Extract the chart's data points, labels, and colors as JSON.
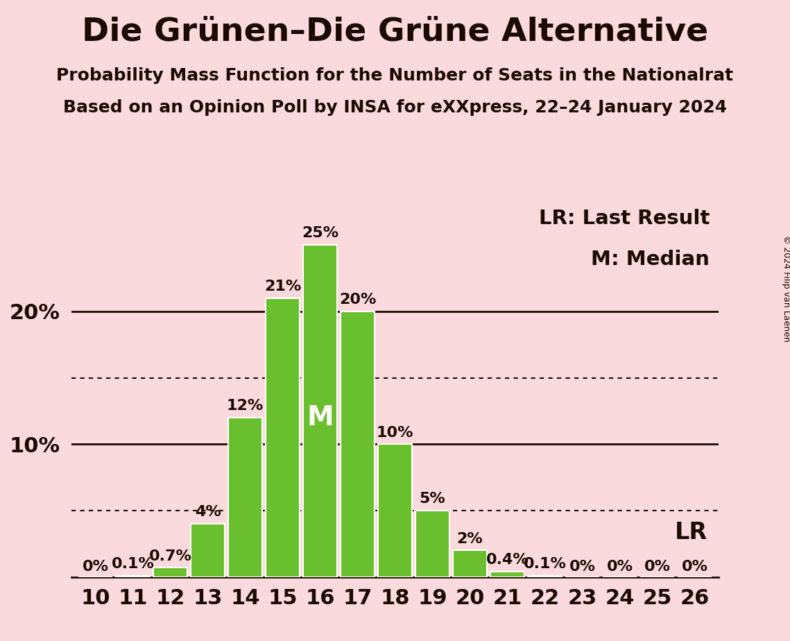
{
  "title": "Die Grünen–Die Grüne Alternative",
  "subtitle1": "Probability Mass Function for the Number of Seats in the Nationalrat",
  "subtitle2": "Based on an Opinion Poll by INSA for eXXpress, 22–24 January 2024",
  "copyright": "© 2024 Filip van Laenen",
  "legend_lr": "LR: Last Result",
  "legend_m": "M: Median",
  "background_color": "#fadadd",
  "bar_color": "#6abf2e",
  "bar_edge_color": "#ffffff",
  "text_color": "#1a0a00",
  "seats": [
    10,
    11,
    12,
    13,
    14,
    15,
    16,
    17,
    18,
    19,
    20,
    21,
    22,
    23,
    24,
    25,
    26
  ],
  "probabilities": [
    0.0,
    0.1,
    0.7,
    4.0,
    12.0,
    21.0,
    25.0,
    20.0,
    10.0,
    5.0,
    2.0,
    0.4,
    0.1,
    0.0,
    0.0,
    0.0,
    0.0
  ],
  "prob_labels": [
    "0%",
    "0.1%",
    "0.7%",
    "4%",
    "12%",
    "21%",
    "25%",
    "20%",
    "10%",
    "5%",
    "2%",
    "0.4%",
    "0.1%",
    "0%",
    "0%",
    "0%",
    "0%"
  ],
  "median_seat": 16,
  "lr_seat": 26,
  "dotted_lines": [
    5.0,
    15.0
  ],
  "solid_lines": [
    10.0,
    20.0
  ],
  "ylim": [
    0,
    28
  ],
  "solid_yticks": [
    10,
    20
  ],
  "solid_ytick_labels": [
    "10%",
    "20%"
  ],
  "title_fontsize": 34,
  "subtitle_fontsize": 18,
  "tick_fontsize": 22,
  "bar_label_fontsize": 16,
  "legend_fontsize": 21,
  "lr_label_fontsize": 24,
  "m_fontsize": 28,
  "copyright_fontsize": 9
}
